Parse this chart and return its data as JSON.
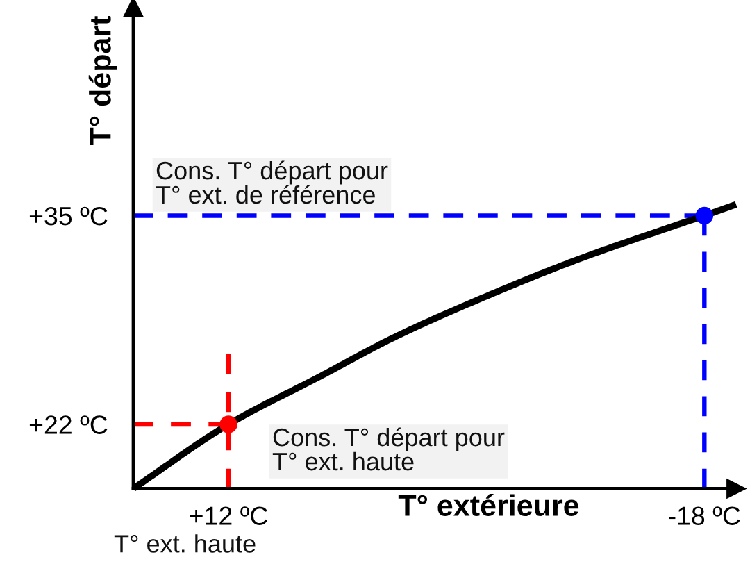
{
  "chart_data": {
    "type": "line",
    "xlabel": "T° extérieure",
    "ylabel": "T° départ",
    "xlim": [
      18,
      -20
    ],
    "ylim": [
      18,
      48
    ],
    "xticks": [
      {
        "value": 12,
        "label": "+12 ºC"
      },
      {
        "value": -18,
        "label": "-18 ºC"
      }
    ],
    "yticks": [
      {
        "value": 22,
        "label": "+22 ºC"
      },
      {
        "value": 35,
        "label": "+35 ºC"
      }
    ],
    "series": [
      {
        "x": [
          18,
          12,
          6.2,
          1.6,
          -4.3,
          -10.1,
          -15.9,
          -18,
          -20
        ],
        "values": [
          18,
          22,
          25.0,
          27.4,
          30.0,
          32.3,
          34.3,
          35,
          35.7
        ],
        "color": "#000000",
        "line_style": "solid"
      },
      {
        "x": [
          12,
          12
        ],
        "values": [
          18,
          26.4
        ],
        "color": "#ff0000",
        "line_style": "dashed"
      },
      {
        "x": [
          18,
          12
        ],
        "values": [
          22,
          22
        ],
        "color": "#ff0000",
        "line_style": "dashed"
      },
      {
        "x": [
          18,
          -18
        ],
        "values": [
          35,
          35
        ],
        "color": "#0000ff",
        "line_style": "dashed"
      },
      {
        "x": [
          -18,
          -18
        ],
        "values": [
          18,
          35
        ],
        "color": "#0000ff",
        "line_style": "dashed"
      },
      {
        "type": "scatter",
        "x": [
          12
        ],
        "values": [
          22
        ],
        "color": "#ff0000",
        "marker": "circle"
      },
      {
        "type": "scatter",
        "x": [
          -18
        ],
        "values": [
          35
        ],
        "color": "#0000ff",
        "marker": "circle"
      }
    ],
    "annotations": [
      "Cons. T° départ pour\nT° ext. de référence",
      "Cons. T° départ pour\nT° ext. haute",
      "T° ext. haute"
    ]
  }
}
